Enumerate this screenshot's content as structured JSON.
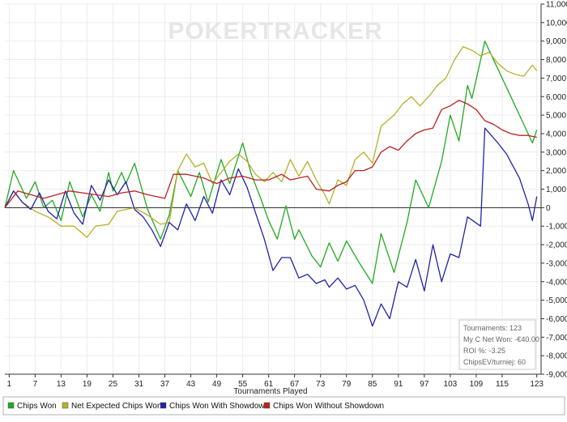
{
  "chart_data": {
    "type": "line",
    "watermark": "POKERTRACKER",
    "xlabel": "Tournaments Played",
    "ylabel": "",
    "xlim": [
      0,
      124
    ],
    "ylim": [
      -9000,
      11000
    ],
    "xticks": [
      1,
      7,
      13,
      19,
      25,
      31,
      37,
      43,
      49,
      55,
      61,
      67,
      73,
      79,
      85,
      91,
      97,
      103,
      109,
      115,
      123
    ],
    "yticks": [
      -9000,
      -8000,
      -7000,
      -6000,
      -5000,
      -4000,
      -3000,
      -2000,
      -1000,
      0,
      1000,
      2000,
      3000,
      4000,
      5000,
      6000,
      7000,
      8000,
      9000,
      10000,
      11000
    ],
    "ytick_labels": [
      "-9,000",
      "-8,000",
      "-7,000",
      "-6,000",
      "-5,000",
      "-4,000",
      "-3,000",
      "-2,000",
      "-1,000",
      "0",
      "1,000",
      "2,000",
      "3,000",
      "4,000",
      "5,000",
      "6,000",
      "7,000",
      "8,000",
      "9,000",
      "10,000",
      "11,000"
    ],
    "grid": true,
    "legend_position": "bottom",
    "series": [
      {
        "name": "Chips Won",
        "color": "#22aa22",
        "points": [
          [
            0,
            0
          ],
          [
            2,
            2000
          ],
          [
            5,
            500
          ],
          [
            7,
            1400
          ],
          [
            9,
            0
          ],
          [
            11,
            400
          ],
          [
            13,
            -700
          ],
          [
            15,
            1400
          ],
          [
            18,
            -500
          ],
          [
            20,
            700
          ],
          [
            22,
            -200
          ],
          [
            24,
            1900
          ],
          [
            25,
            900
          ],
          [
            27,
            1900
          ],
          [
            28,
            1300
          ],
          [
            30,
            2400
          ],
          [
            33,
            -100
          ],
          [
            36,
            -1700
          ],
          [
            38,
            -400
          ],
          [
            40,
            2000
          ],
          [
            43,
            600
          ],
          [
            45,
            1900
          ],
          [
            47,
            300
          ],
          [
            50,
            2600
          ],
          [
            52,
            1300
          ],
          [
            55,
            3500
          ],
          [
            57,
            1800
          ],
          [
            59,
            600
          ],
          [
            61,
            -700
          ],
          [
            63,
            -1700
          ],
          [
            65,
            100
          ],
          [
            67,
            -1700
          ],
          [
            68,
            -1200
          ],
          [
            71,
            -2600
          ],
          [
            73,
            -3200
          ],
          [
            75,
            -1900
          ],
          [
            77,
            -2900
          ],
          [
            79,
            -1800
          ],
          [
            82,
            -3000
          ],
          [
            85,
            -4100
          ],
          [
            87,
            -1400
          ],
          [
            90,
            -3500
          ],
          [
            93,
            -800
          ],
          [
            95,
            1500
          ],
          [
            98,
            0
          ],
          [
            101,
            2500
          ],
          [
            103,
            5000
          ],
          [
            105,
            3600
          ],
          [
            107,
            6600
          ],
          [
            108,
            5900
          ],
          [
            111,
            9000
          ],
          [
            122,
            3500
          ],
          [
            123,
            4200
          ]
        ]
      },
      {
        "name": "Net Expected Chips Won",
        "color": "#b5b028",
        "points": [
          [
            0,
            0
          ],
          [
            2,
            900
          ],
          [
            4,
            300
          ],
          [
            7,
            -200
          ],
          [
            10,
            -500
          ],
          [
            13,
            -1000
          ],
          [
            16,
            -1000
          ],
          [
            19,
            -1600
          ],
          [
            21,
            -1000
          ],
          [
            24,
            -900
          ],
          [
            26,
            -200
          ],
          [
            28,
            -100
          ],
          [
            30,
            0
          ],
          [
            33,
            -400
          ],
          [
            36,
            -900
          ],
          [
            38,
            -800
          ],
          [
            40,
            2000
          ],
          [
            42,
            2900
          ],
          [
            44,
            2200
          ],
          [
            46,
            2400
          ],
          [
            48,
            1300
          ],
          [
            50,
            1900
          ],
          [
            52,
            2500
          ],
          [
            54,
            2900
          ],
          [
            56,
            2500
          ],
          [
            58,
            1800
          ],
          [
            60,
            1400
          ],
          [
            62,
            1900
          ],
          [
            64,
            1400
          ],
          [
            66,
            2600
          ],
          [
            68,
            1700
          ],
          [
            70,
            2500
          ],
          [
            72,
            1500
          ],
          [
            74,
            700
          ],
          [
            75,
            200
          ],
          [
            77,
            1500
          ],
          [
            79,
            1200
          ],
          [
            81,
            2600
          ],
          [
            83,
            3000
          ],
          [
            85,
            2400
          ],
          [
            87,
            4400
          ],
          [
            90,
            5000
          ],
          [
            92,
            5600
          ],
          [
            94,
            6000
          ],
          [
            96,
            5500
          ],
          [
            98,
            6000
          ],
          [
            100,
            6600
          ],
          [
            102,
            7000
          ],
          [
            104,
            8000
          ],
          [
            106,
            8700
          ],
          [
            108,
            8500
          ],
          [
            110,
            8200
          ],
          [
            112,
            8400
          ],
          [
            114,
            7800
          ],
          [
            116,
            7400
          ],
          [
            118,
            7200
          ],
          [
            120,
            7100
          ],
          [
            122,
            7700
          ],
          [
            123,
            7400
          ]
        ]
      },
      {
        "name": "Chips Won With Showdown",
        "color": "#2222aa",
        "points": [
          [
            0,
            0
          ],
          [
            2,
            900
          ],
          [
            4,
            300
          ],
          [
            6,
            -100
          ],
          [
            8,
            800
          ],
          [
            10,
            -200
          ],
          [
            12,
            -600
          ],
          [
            14,
            900
          ],
          [
            16,
            -300
          ],
          [
            18,
            -900
          ],
          [
            20,
            1200
          ],
          [
            22,
            400
          ],
          [
            24,
            1500
          ],
          [
            26,
            700
          ],
          [
            28,
            1400
          ],
          [
            30,
            -100
          ],
          [
            32,
            -500
          ],
          [
            34,
            -1200
          ],
          [
            36,
            -2100
          ],
          [
            38,
            -800
          ],
          [
            40,
            -1200
          ],
          [
            42,
            200
          ],
          [
            44,
            -700
          ],
          [
            46,
            600
          ],
          [
            48,
            -300
          ],
          [
            50,
            1500
          ],
          [
            52,
            700
          ],
          [
            54,
            2100
          ],
          [
            56,
            1100
          ],
          [
            58,
            -300
          ],
          [
            60,
            -1700
          ],
          [
            62,
            -3400
          ],
          [
            64,
            -2700
          ],
          [
            66,
            -2700
          ],
          [
            68,
            -3800
          ],
          [
            70,
            -3600
          ],
          [
            72,
            -4100
          ],
          [
            74,
            -3900
          ],
          [
            75,
            -4300
          ],
          [
            77,
            -3800
          ],
          [
            79,
            -4400
          ],
          [
            81,
            -4200
          ],
          [
            83,
            -5000
          ],
          [
            85,
            -6400
          ],
          [
            87,
            -5200
          ],
          [
            89,
            -6000
          ],
          [
            91,
            -4000
          ],
          [
            93,
            -4300
          ],
          [
            95,
            -2800
          ],
          [
            97,
            -4500
          ],
          [
            99,
            -2000
          ],
          [
            101,
            -4000
          ],
          [
            103,
            -2500
          ],
          [
            105,
            -2700
          ],
          [
            107,
            -500
          ],
          [
            110,
            -1000
          ],
          [
            111,
            4300
          ],
          [
            114,
            3500
          ],
          [
            116,
            2900
          ],
          [
            119,
            1600
          ],
          [
            121,
            200
          ],
          [
            122,
            -700
          ],
          [
            123,
            600
          ]
        ]
      },
      {
        "name": "Chips Won Without Showdown",
        "color": "#bb2222",
        "points": [
          [
            0,
            0
          ],
          [
            3,
            900
          ],
          [
            6,
            700
          ],
          [
            9,
            500
          ],
          [
            12,
            700
          ],
          [
            15,
            900
          ],
          [
            18,
            800
          ],
          [
            21,
            700
          ],
          [
            24,
            600
          ],
          [
            27,
            800
          ],
          [
            30,
            900
          ],
          [
            33,
            700
          ],
          [
            37,
            500
          ],
          [
            39,
            1800
          ],
          [
            42,
            1800
          ],
          [
            46,
            1600
          ],
          [
            49,
            1300
          ],
          [
            52,
            1600
          ],
          [
            55,
            1700
          ],
          [
            58,
            1500
          ],
          [
            61,
            1500
          ],
          [
            64,
            1800
          ],
          [
            66,
            1500
          ],
          [
            68,
            1600
          ],
          [
            70,
            1700
          ],
          [
            72,
            1000
          ],
          [
            75,
            900
          ],
          [
            77,
            1200
          ],
          [
            79,
            1400
          ],
          [
            81,
            2000
          ],
          [
            83,
            2000
          ],
          [
            85,
            2200
          ],
          [
            87,
            3000
          ],
          [
            89,
            3300
          ],
          [
            91,
            3100
          ],
          [
            93,
            3600
          ],
          [
            95,
            4000
          ],
          [
            97,
            4200
          ],
          [
            99,
            4300
          ],
          [
            101,
            5300
          ],
          [
            103,
            5500
          ],
          [
            105,
            5800
          ],
          [
            107,
            5600
          ],
          [
            109,
            5300
          ],
          [
            111,
            4700
          ],
          [
            113,
            4500
          ],
          [
            115,
            4200
          ],
          [
            117,
            4000
          ],
          [
            119,
            3900
          ],
          [
            121,
            3900
          ],
          [
            123,
            3800
          ]
        ]
      }
    ],
    "info_box": [
      "Tournaments: 123",
      "My C Net Won: -€40.00",
      "ROI %: -3.25",
      "ChipsEV/turniej: 60"
    ]
  }
}
